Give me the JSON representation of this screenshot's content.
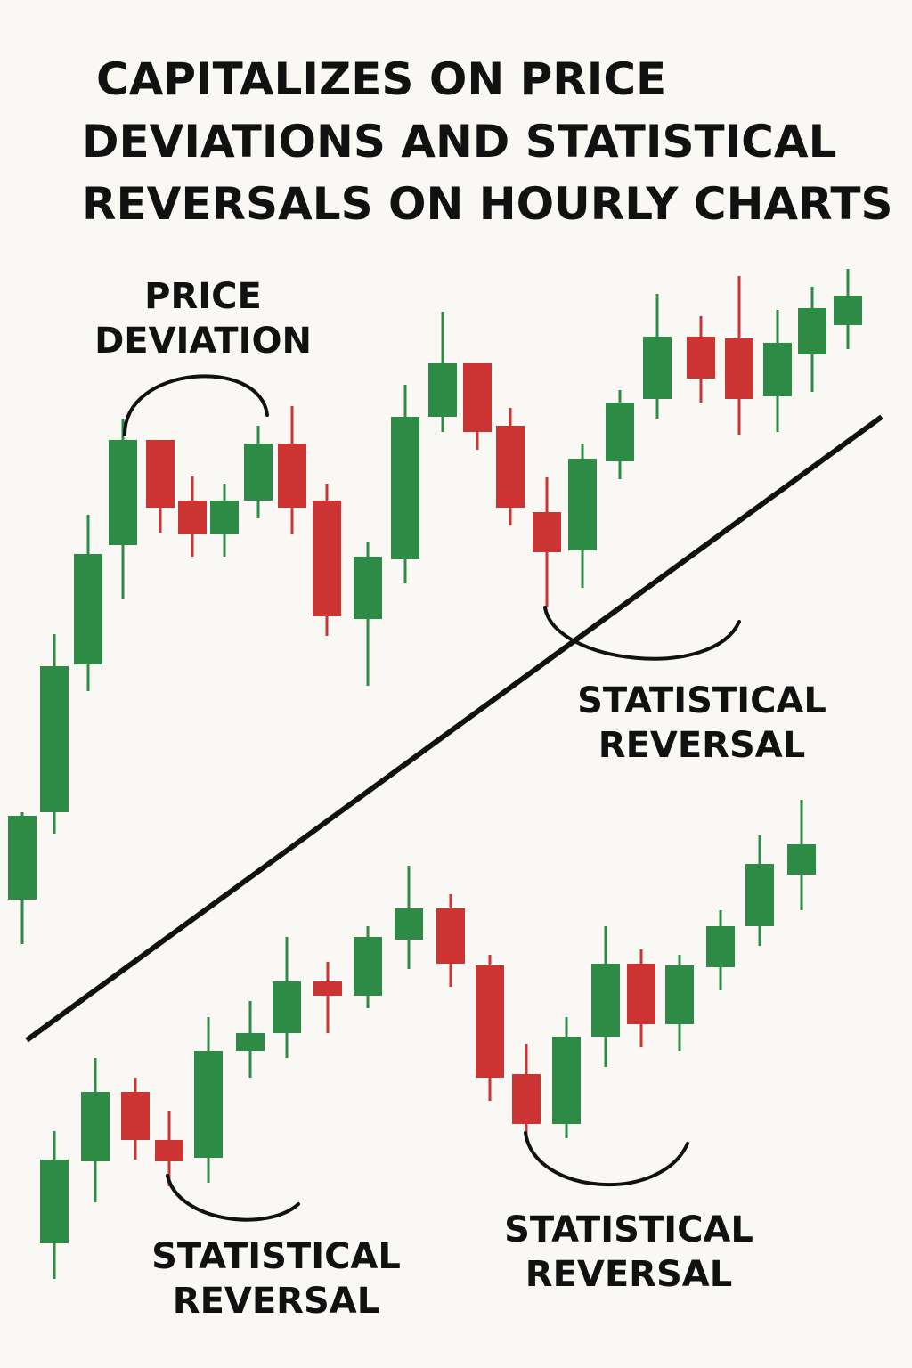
{
  "header": {
    "title": [
      "CAPITALIZES ON PRICE",
      "DEVIATIONS AND STATISTICAL",
      "REVERSALS ON HOURLY CHARTS"
    ]
  },
  "annotations": [
    {
      "lines": [
        "PRICE",
        "DEVIATION"
      ]
    },
    {
      "lines": [
        "STATISTICAL",
        "REVERSAL"
      ]
    },
    {
      "lines": [
        "STATISTICAL",
        "REVERSAL"
      ]
    },
    {
      "lines": [
        "STATISTICAL",
        "REVERSAL"
      ]
    }
  ]
}
